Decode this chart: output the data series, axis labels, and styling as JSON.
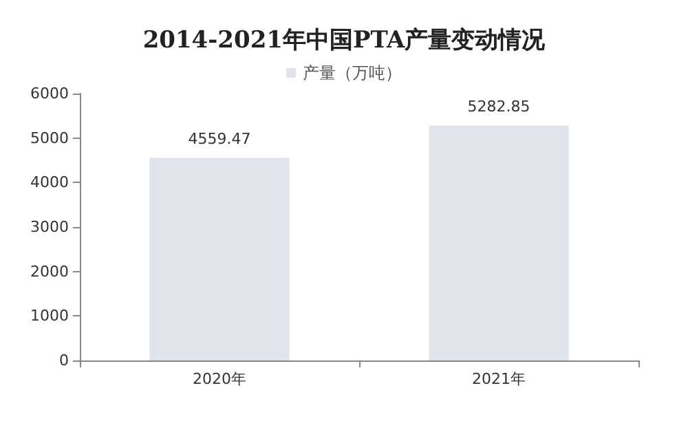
{
  "chart_data": {
    "type": "bar",
    "title": "2014-2021年中国PTA产量变动情况",
    "categories": [
      "2020年",
      "2021年"
    ],
    "series": [
      {
        "name": "产量（万吨）",
        "color": "#dfe3ea",
        "values": [
          4559.47,
          5282.85
        ]
      }
    ],
    "ylim": [
      0,
      6000
    ],
    "yticks": [
      0,
      1000,
      2000,
      3000,
      4000,
      5000,
      6000
    ],
    "grid": false,
    "legend": "top",
    "data_labels": true
  }
}
